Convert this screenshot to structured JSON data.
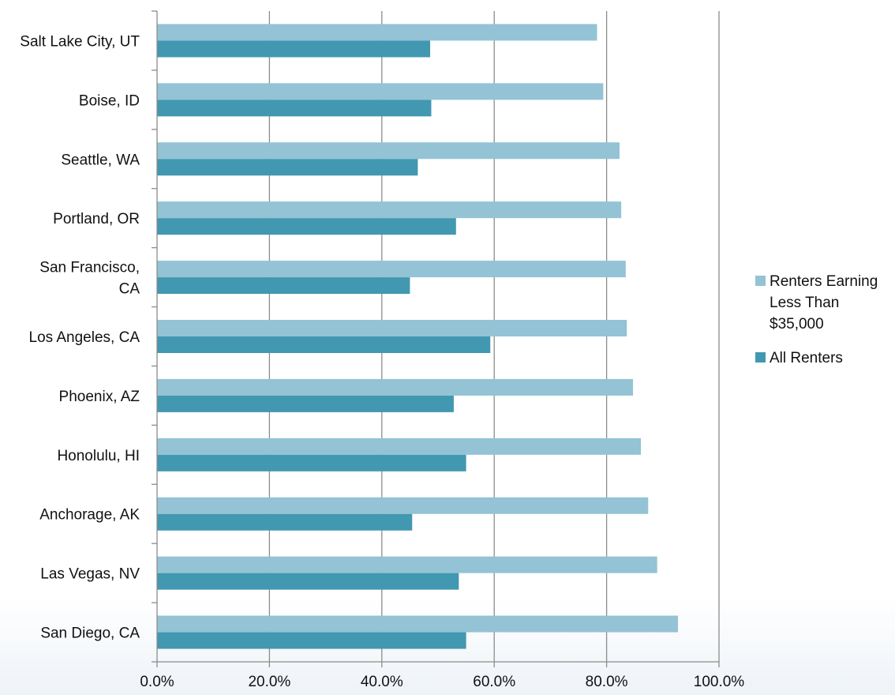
{
  "chart_data": {
    "type": "bar",
    "orientation": "horizontal",
    "categories": [
      "Salt Lake City, UT",
      "Boise, ID",
      "Seattle, WA",
      "Portland, OR",
      "San Francisco, CA",
      "Los Angeles, CA",
      "Phoenix, AZ",
      "Honolulu, HI",
      "Anchorage, AK",
      "Las Vegas, NV",
      "San Diego, CA"
    ],
    "category_display": [
      [
        "Salt Lake City, UT"
      ],
      [
        "Boise, ID"
      ],
      [
        "Seattle, WA"
      ],
      [
        "Portland, OR"
      ],
      [
        "San Francisco,",
        "CA"
      ],
      [
        "Los Angeles, CA"
      ],
      [
        "Phoenix, AZ"
      ],
      [
        "Honolulu, HI"
      ],
      [
        "Anchorage, AK"
      ],
      [
        "Las Vegas, NV"
      ],
      [
        "San Diego, CA"
      ]
    ],
    "series": [
      {
        "name": "Renters Earning Less Than $35,000",
        "name_lines": [
          "Renters Earning",
          "Less Than",
          "$35,000"
        ],
        "color": "#93c3d5",
        "values": [
          78.3,
          79.4,
          82.3,
          82.6,
          83.4,
          83.6,
          84.7,
          86.1,
          87.4,
          89.0,
          92.7
        ]
      },
      {
        "name": "All Renters",
        "name_lines": [
          "All Renters"
        ],
        "color": "#4298b0",
        "values": [
          48.6,
          48.8,
          46.4,
          53.2,
          45.0,
          59.3,
          52.8,
          55.0,
          45.4,
          53.7,
          55.0
        ]
      }
    ],
    "xlim": [
      0,
      100
    ],
    "xticks": [
      "0.0%",
      "20.0%",
      "40.0%",
      "60.0%",
      "80.0%",
      "100.0%"
    ],
    "grid": true,
    "legend": "right",
    "title": "",
    "xlabel": "",
    "ylabel": ""
  }
}
